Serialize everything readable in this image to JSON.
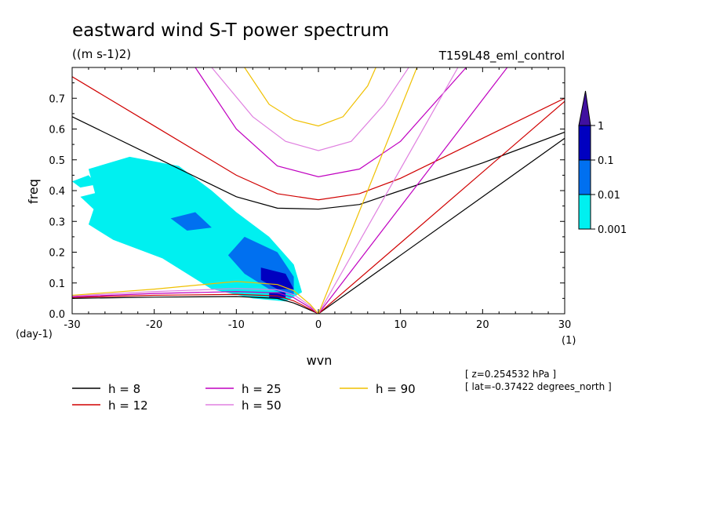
{
  "chart_data": {
    "type": "line",
    "title": "eastward wind S-T power spectrum",
    "units": "((m s-1)2)",
    "run": "T159L48_eml_control",
    "xlabel": "wvn",
    "ylabel": "freq",
    "x_units": "(1)",
    "y_units": "(day-1)",
    "xlim": [
      -30,
      30
    ],
    "ylim": [
      0,
      0.8
    ],
    "x_ticks": [
      "-30",
      "-20",
      "-10",
      "0",
      "10",
      "20",
      "30"
    ],
    "y_ticks": [
      "0.0",
      "0.1",
      "0.2",
      "0.3",
      "0.4",
      "0.5",
      "0.6",
      "0.7"
    ],
    "colorbar": {
      "levels": [
        "0.001",
        "0.01",
        "0.1",
        "1"
      ],
      "colors": [
        "#00f0f0",
        "#0070f0",
        "#0000c0",
        "#4010a0"
      ]
    },
    "info": [
      "[ z=0.254532 hPa ]",
      "[ lat=-0.37422 degrees_north ]"
    ],
    "legend": [
      {
        "label": "h =  8",
        "color": "#000000"
      },
      {
        "label": "h = 12",
        "color": "#d00000"
      },
      {
        "label": "h = 25",
        "color": "#c000c0"
      },
      {
        "label": "h = 50",
        "color": "#e080e0"
      },
      {
        "label": "h = 90",
        "color": "#f0c000"
      }
    ],
    "series": [
      {
        "name": "h = 8",
        "color": "#000000",
        "kelvin_x": [
          0,
          30
        ],
        "kelvin_y": [
          0,
          0.57
        ],
        "ig_x": [
          -30,
          -20,
          -10,
          -5,
          0,
          5,
          10,
          20,
          30
        ],
        "ig_y": [
          0.64,
          0.51,
          0.38,
          0.343,
          0.34,
          0.355,
          0.4,
          0.49,
          0.59
        ],
        "rossby_x": [
          -30,
          -20,
          -10,
          -5,
          -3,
          -1,
          0
        ],
        "rossby_y": [
          0.05,
          0.054,
          0.056,
          0.05,
          0.035,
          0.012,
          0
        ]
      },
      {
        "name": "h = 12",
        "color": "#d00000",
        "kelvin_x": [
          0,
          30
        ],
        "kelvin_y": [
          0,
          0.69
        ],
        "ig_x": [
          -30,
          -20,
          -10,
          -5,
          0,
          5,
          10,
          20,
          30
        ],
        "ig_y": [
          0.77,
          0.61,
          0.45,
          0.39,
          0.37,
          0.39,
          0.44,
          0.57,
          0.7
        ],
        "rossby_x": [
          -30,
          -20,
          -10,
          -5,
          -3,
          -1,
          0
        ],
        "rossby_y": [
          0.053,
          0.06,
          0.063,
          0.058,
          0.042,
          0.015,
          0
        ]
      },
      {
        "name": "h = 25",
        "color": "#c000c0",
        "kelvin_x": [
          0,
          23
        ],
        "kelvin_y": [
          0,
          0.8
        ],
        "ig_x": [
          -15,
          -10,
          -5,
          0,
          5,
          10,
          18
        ],
        "ig_y": [
          0.8,
          0.6,
          0.48,
          0.445,
          0.47,
          0.56,
          0.8
        ],
        "rossby_x": [
          -30,
          -20,
          -10,
          -5,
          -3,
          -1,
          0
        ],
        "rossby_y": [
          0.055,
          0.066,
          0.072,
          0.068,
          0.052,
          0.02,
          0
        ]
      },
      {
        "name": "h = 50",
        "color": "#e080e0",
        "kelvin_x": [
          0,
          17
        ],
        "kelvin_y": [
          0,
          0.8
        ],
        "ig_x": [
          -13,
          -8,
          -4,
          0,
          4,
          8,
          11
        ],
        "ig_y": [
          0.8,
          0.64,
          0.56,
          0.53,
          0.56,
          0.68,
          0.8
        ],
        "rossby_x": [
          -30,
          -20,
          -10,
          -5,
          -3,
          -1,
          0
        ],
        "rossby_y": [
          0.058,
          0.072,
          0.082,
          0.078,
          0.062,
          0.025,
          0
        ]
      },
      {
        "name": "h = 90",
        "color": "#f0c000",
        "kelvin_x": [
          0,
          12
        ],
        "kelvin_y": [
          0,
          0.8
        ],
        "ig_x": [
          -9,
          -6,
          -3,
          0,
          3,
          6,
          7
        ],
        "ig_y": [
          0.8,
          0.68,
          0.63,
          0.61,
          0.64,
          0.74,
          0.8
        ],
        "rossby_x": [
          -30,
          -20,
          -10,
          -5,
          -3,
          -1,
          0
        ],
        "rossby_y": [
          0.06,
          0.08,
          0.105,
          0.095,
          0.075,
          0.03,
          0
        ]
      }
    ],
    "shaded_regions": [
      {
        "level": "0.001",
        "color": "#00f0f0",
        "points": [
          [
            -28,
            0.47
          ],
          [
            -23,
            0.51
          ],
          [
            -17,
            0.48
          ],
          [
            -13,
            0.4
          ],
          [
            -10,
            0.33
          ],
          [
            -6,
            0.25
          ],
          [
            -3,
            0.16
          ],
          [
            -2,
            0.07
          ],
          [
            -4,
            0.04
          ],
          [
            -8,
            0.05
          ],
          [
            -13,
            0.08
          ],
          [
            -19,
            0.18
          ],
          [
            -25,
            0.24
          ],
          [
            -28,
            0.29
          ],
          [
            -27,
            0.37
          ]
        ]
      },
      {
        "level": "0.001",
        "color": "#00f0f0",
        "points": [
          [
            -29,
            0.38
          ],
          [
            -26,
            0.4
          ],
          [
            -24,
            0.36
          ],
          [
            -27,
            0.33
          ]
        ]
      },
      {
        "level": "0.001",
        "color": "#00f0f0",
        "points": [
          [
            -30,
            0.43
          ],
          [
            -28,
            0.45
          ],
          [
            -27,
            0.42
          ],
          [
            -29,
            0.41
          ]
        ]
      },
      {
        "level": "0.01",
        "color": "#0070f0",
        "points": [
          [
            -9,
            0.25
          ],
          [
            -5,
            0.2
          ],
          [
            -3,
            0.12
          ],
          [
            -3,
            0.06
          ],
          [
            -6,
            0.08
          ],
          [
            -9,
            0.13
          ],
          [
            -11,
            0.19
          ]
        ]
      },
      {
        "level": "0.01",
        "color": "#0070f0",
        "points": [
          [
            -18,
            0.31
          ],
          [
            -15,
            0.33
          ],
          [
            -13,
            0.28
          ],
          [
            -16,
            0.27
          ]
        ]
      },
      {
        "level": "0.1",
        "color": "#0000c0",
        "points": [
          [
            -7,
            0.15
          ],
          [
            -4,
            0.13
          ],
          [
            -3,
            0.08
          ],
          [
            -5,
            0.08
          ],
          [
            -7,
            0.11
          ]
        ]
      },
      {
        "level": "0.1",
        "color": "#0000c0",
        "points": [
          [
            -6,
            0.07
          ],
          [
            -4,
            0.07
          ],
          [
            -4,
            0.05
          ],
          [
            -6,
            0.05
          ]
        ]
      }
    ]
  }
}
